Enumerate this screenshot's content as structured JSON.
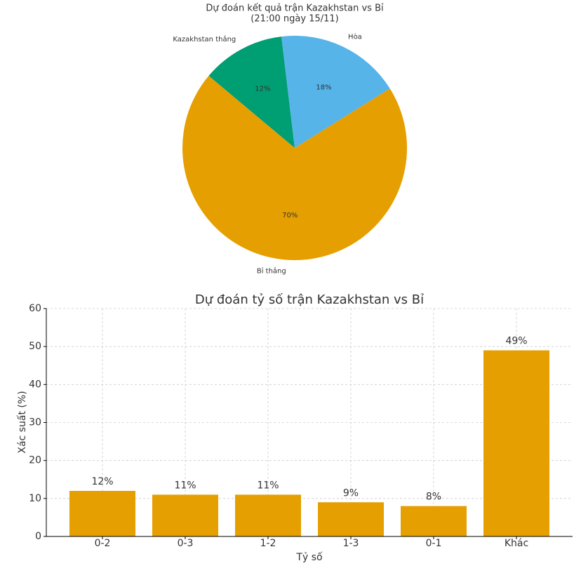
{
  "chart_data": [
    {
      "type": "pie",
      "title": "Dự đoán kết quả trận Kazakhstan vs Bỉ",
      "subtitle": "(21:00 ngày 15/11)",
      "categories": [
        "Kazakhstan thắng",
        "Hòa",
        "Bỉ thắng"
      ],
      "values": [
        12,
        18,
        70
      ],
      "value_labels": [
        "12%",
        "18%",
        "70%"
      ],
      "colors": [
        "#009e73",
        "#56b4e9",
        "#e69f00"
      ]
    },
    {
      "type": "bar",
      "title": "Dự đoán tỷ số trận Kazakhstan vs Bỉ",
      "xlabel": "Tỷ số",
      "ylabel": "Xác suất (%)",
      "categories": [
        "0-2",
        "0-3",
        "1-2",
        "1-3",
        "0-1",
        "Khác"
      ],
      "values": [
        12,
        11,
        11,
        9,
        8,
        49
      ],
      "value_labels": [
        "12%",
        "11%",
        "11%",
        "9%",
        "8%",
        "49%"
      ],
      "color": "#e69f00",
      "ylim": [
        0,
        60
      ],
      "yticks": [
        0,
        10,
        20,
        30,
        40,
        50,
        60
      ],
      "grid": true
    }
  ]
}
